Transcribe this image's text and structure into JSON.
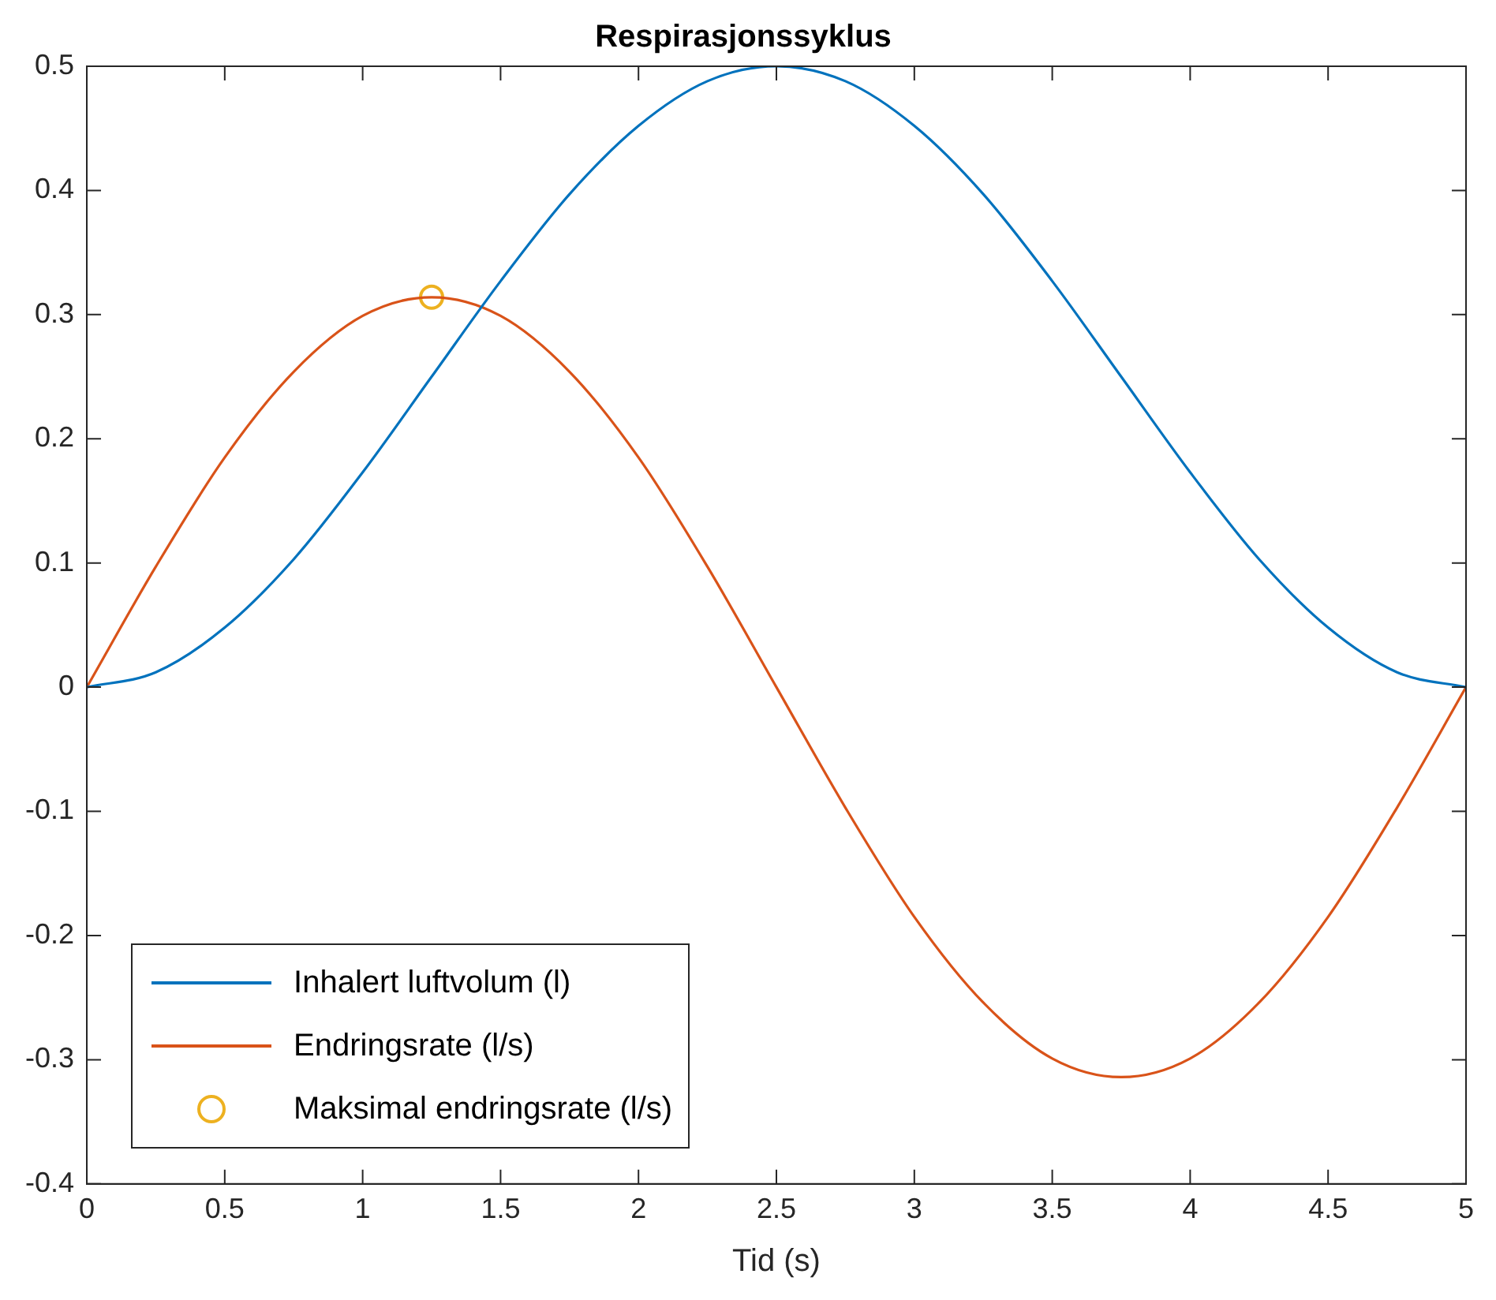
{
  "chart_data": {
    "type": "line",
    "title": "Respirasjonssyklus",
    "xlabel": "Tid (s)",
    "x": [
      0,
      0.25,
      0.5,
      0.75,
      1,
      1.25,
      1.5,
      1.75,
      2,
      2.25,
      2.5,
      2.75,
      3,
      3.25,
      3.5,
      3.75,
      4,
      4.25,
      4.5,
      4.75,
      5
    ],
    "series": [
      {
        "name": "Inhalert luftvolum (l)",
        "color": "#0072bd",
        "values": [
          0,
          0.012,
          0.048,
          0.103,
          0.173,
          0.25,
          0.327,
          0.397,
          0.452,
          0.488,
          0.5,
          0.488,
          0.452,
          0.397,
          0.327,
          0.25,
          0.173,
          0.103,
          0.048,
          0.012,
          0
        ]
      },
      {
        "name": "Endringsrate (l/s)",
        "color": "#d95319",
        "values": [
          0,
          0.097,
          0.185,
          0.254,
          0.299,
          0.314,
          0.299,
          0.254,
          0.185,
          0.097,
          0,
          -0.097,
          -0.185,
          -0.254,
          -0.299,
          -0.314,
          -0.299,
          -0.254,
          -0.185,
          -0.097,
          0
        ]
      },
      {
        "name": "Maksimal endringsrate (l/s)",
        "type": "scatter",
        "marker": "circle",
        "color": "#edb120",
        "x": [
          1.25
        ],
        "values": [
          0.314
        ]
      }
    ],
    "xlim": [
      0,
      5
    ],
    "xticks": [
      0,
      0.5,
      1,
      1.5,
      2,
      2.5,
      3,
      3.5,
      4,
      4.5,
      5
    ],
    "ylim": [
      -0.4,
      0.5
    ],
    "yticks": [
      -0.4,
      -0.3,
      -0.2,
      -0.1,
      0,
      0.1,
      0.2,
      0.3,
      0.4,
      0.5
    ],
    "grid": false,
    "legend": "bottom left"
  }
}
